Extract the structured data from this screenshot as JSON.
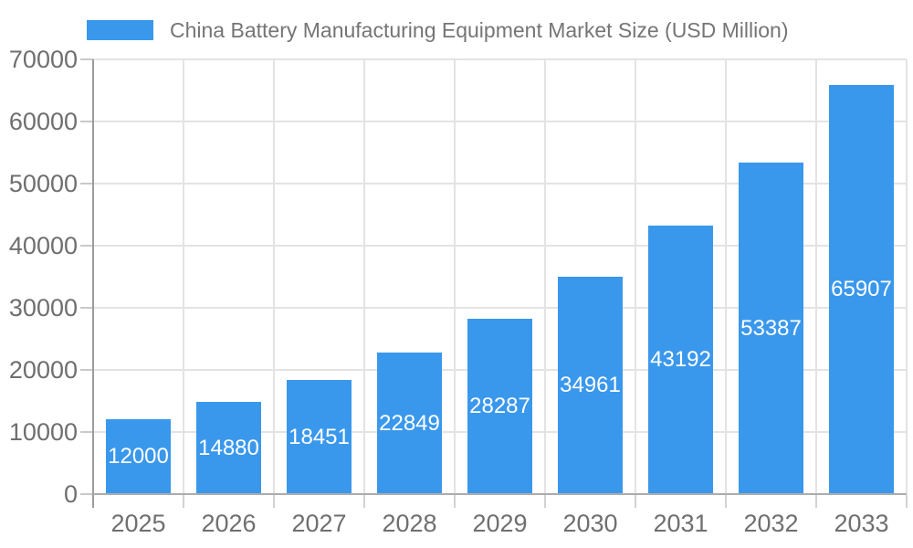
{
  "legend": {
    "label": "China Battery Manufacturing Equipment Market Size (USD Million)",
    "swatch_color": "#3a98ec"
  },
  "chart_data": {
    "type": "bar",
    "title": "China Battery Manufacturing Equipment Market Size (USD Million)",
    "categories": [
      "2025",
      "2026",
      "2027",
      "2028",
      "2029",
      "2030",
      "2031",
      "2032",
      "2033"
    ],
    "values": [
      12000,
      14880,
      18451,
      22849,
      28287,
      34961,
      43192,
      53387,
      65907
    ],
    "value_labels": [
      "12000",
      "14880",
      "18451",
      "22849",
      "28287",
      "34961",
      "43192",
      "53387",
      "65907"
    ],
    "xlabel": "",
    "ylabel": "",
    "ylim": [
      0,
      70000
    ],
    "ytick_step": 10000,
    "yticks": [
      0,
      10000,
      20000,
      30000,
      40000,
      50000,
      60000,
      70000
    ],
    "ytick_labels": [
      "0",
      "10000",
      "20000",
      "30000",
      "40000",
      "50000",
      "60000",
      "70000"
    ],
    "grid": true,
    "legend_position": "top-left",
    "bar_color": "#3a98ec",
    "value_label_color": "#ffffff",
    "axis_label_color": "#6f6f6f",
    "title_color": "#757575",
    "gridline_color": "#e3e3e3"
  }
}
